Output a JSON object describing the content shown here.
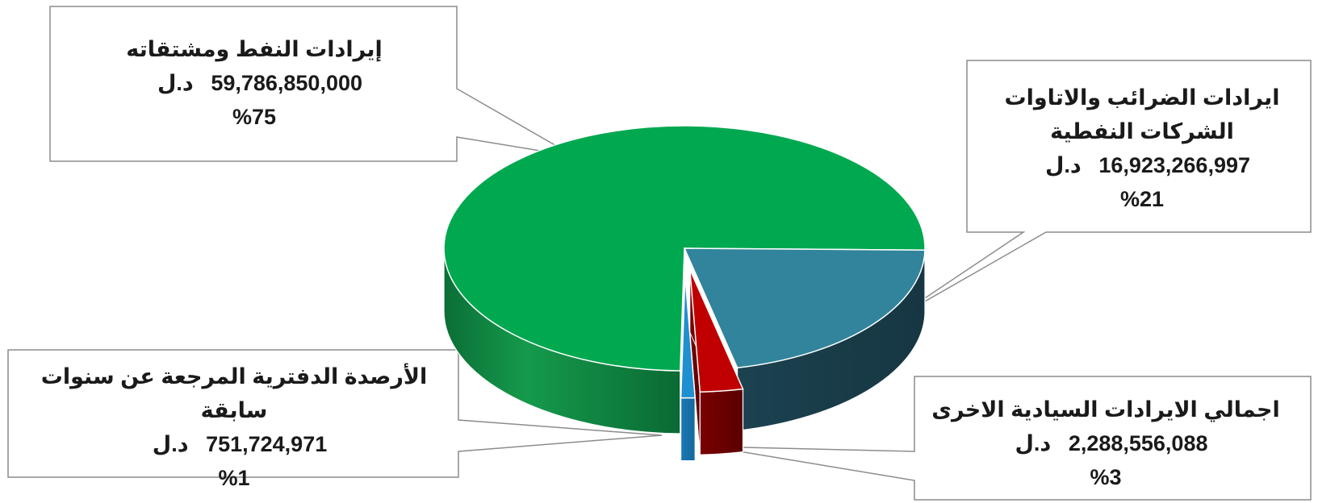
{
  "chart_data": {
    "type": "pie",
    "style": "3d-exploded",
    "slices": [
      {
        "label": "إيرادات النفط ومشتقاته",
        "label_lines": [
          "إيرادات النفط ومشتقاته"
        ],
        "value": 59786850000,
        "value_text": "59,786,850,000",
        "currency": "د.ل",
        "percent_text": "%75",
        "color": "#00A84F"
      },
      {
        "label": "ايرادات الضرائب والاتاوات الشركات النفطية",
        "label_lines": [
          "ايرادات الضرائب والاتاوات",
          "الشركات النفطية"
        ],
        "value": 16923266997,
        "value_text": "16,923,266,997",
        "currency": "د.ل",
        "percent_text": "%21",
        "color": "#31849B"
      },
      {
        "label": "اجمالي الايرادات السيادية الاخرى",
        "label_lines": [
          "اجمالي الايرادات السيادية الاخرى"
        ],
        "value": 2288556088,
        "value_text": "2,288,556,088",
        "currency": "د.ل",
        "percent_text": "%3",
        "color": "#C00000"
      },
      {
        "label": "الأرصدة الدفترية المرجعة عن سنوات سابقة",
        "label_lines": [
          "الأرصدة الدفترية المرجعة عن سنوات سابقة"
        ],
        "value": 751724971,
        "value_text": "751,724,971",
        "currency": "د.ل",
        "percent_text": "%1",
        "color": "#1F8FD0"
      }
    ]
  }
}
